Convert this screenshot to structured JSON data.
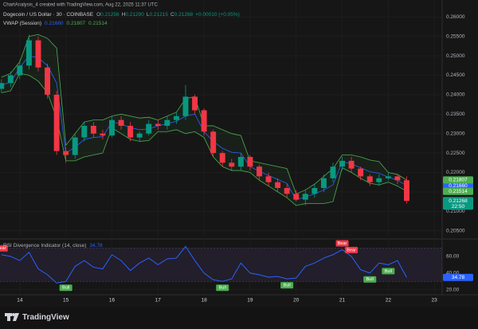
{
  "header": "ChartAnalysis_4 created with TradingView.com, Aug 22, 2025 11:37 UTC",
  "footer": "TradingView",
  "chart_data": [
    {
      "type": "candlestick",
      "title": "Dogecoin / US Dollar · 30 · COINBASE",
      "ohlc_legend": [
        {
          "label": "O",
          "value": "0.21256"
        },
        {
          "label": "H",
          "value": "0.21290"
        },
        {
          "label": "L",
          "value": "0.21215"
        },
        {
          "label": "C",
          "value": "0.21268"
        }
      ],
      "change": "+0.00010 (+0.05%)",
      "overlay_title": "VWAP (Session)",
      "x": [
        13.6,
        13.8,
        14.0,
        14.2,
        14.4,
        14.6,
        14.8,
        15.0,
        15.2,
        15.4,
        15.6,
        15.8,
        16.0,
        16.2,
        16.4,
        16.6,
        16.8,
        17.0,
        17.2,
        17.4,
        17.6,
        17.8,
        18.0,
        18.2,
        18.4,
        18.6,
        18.8,
        19.0,
        19.2,
        19.4,
        19.6,
        19.8,
        20.0,
        20.2,
        20.4,
        20.6,
        20.8,
        21.0,
        21.2,
        21.4,
        21.6,
        21.8,
        22.0,
        22.2,
        22.4
      ],
      "open": [
        0.2415,
        0.243,
        0.245,
        0.2475,
        0.254,
        0.247,
        0.24,
        0.2255,
        0.2245,
        0.229,
        0.232,
        0.23,
        0.2295,
        0.2335,
        0.232,
        0.229,
        0.23,
        0.2325,
        0.232,
        0.2335,
        0.2345,
        0.2395,
        0.236,
        0.2305,
        0.225,
        0.2225,
        0.2215,
        0.224,
        0.2215,
        0.219,
        0.2175,
        0.216,
        0.2145,
        0.213,
        0.2145,
        0.216,
        0.2185,
        0.2215,
        0.223,
        0.221,
        0.219,
        0.2175,
        0.2185,
        0.219,
        0.218
      ],
      "high": [
        0.244,
        0.246,
        0.249,
        0.2555,
        0.255,
        0.248,
        0.241,
        0.2265,
        0.23,
        0.233,
        0.233,
        0.231,
        0.2345,
        0.2345,
        0.233,
        0.2305,
        0.2335,
        0.2335,
        0.2345,
        0.2355,
        0.2425,
        0.24,
        0.2365,
        0.231,
        0.2255,
        0.2235,
        0.225,
        0.2245,
        0.222,
        0.22,
        0.2185,
        0.217,
        0.2155,
        0.2155,
        0.217,
        0.2195,
        0.2225,
        0.224,
        0.224,
        0.2215,
        0.2195,
        0.2195,
        0.22,
        0.2195,
        0.219
      ],
      "low": [
        0.2405,
        0.242,
        0.244,
        0.2465,
        0.246,
        0.239,
        0.2245,
        0.2225,
        0.2235,
        0.228,
        0.229,
        0.2285,
        0.229,
        0.231,
        0.228,
        0.228,
        0.2295,
        0.231,
        0.231,
        0.2325,
        0.2335,
        0.235,
        0.2295,
        0.224,
        0.2215,
        0.2205,
        0.2205,
        0.2205,
        0.218,
        0.2165,
        0.215,
        0.2135,
        0.2125,
        0.2115,
        0.2135,
        0.215,
        0.2175,
        0.2205,
        0.22,
        0.218,
        0.2165,
        0.2165,
        0.218,
        0.217,
        0.212
      ],
      "close": [
        0.243,
        0.245,
        0.2475,
        0.254,
        0.247,
        0.24,
        0.2255,
        0.2245,
        0.229,
        0.232,
        0.23,
        0.2295,
        0.2335,
        0.232,
        0.229,
        0.23,
        0.2325,
        0.232,
        0.2335,
        0.2345,
        0.2395,
        0.236,
        0.2305,
        0.225,
        0.2225,
        0.2215,
        0.224,
        0.2215,
        0.219,
        0.2175,
        0.216,
        0.2145,
        0.213,
        0.2145,
        0.216,
        0.2185,
        0.2215,
        0.223,
        0.221,
        0.219,
        0.2175,
        0.2185,
        0.219,
        0.218,
        0.21268
      ],
      "close_label": "0.21268",
      "countdown": "22:50",
      "up_color": "#089981",
      "down_color": "#f23645",
      "series": [
        {
          "color": "#2962ff",
          "last_label": "0.21660",
          "values": [
            0.2425,
            0.2432,
            0.247,
            0.25,
            0.2495,
            0.2475,
            0.243,
            0.225,
            0.2265,
            0.2285,
            0.229,
            0.2292,
            0.233,
            0.2325,
            0.2315,
            0.231,
            0.2312,
            0.232,
            0.2325,
            0.2332,
            0.2345,
            0.235,
            0.2305,
            0.228,
            0.2262,
            0.2252,
            0.225,
            0.2215,
            0.2203,
            0.2192,
            0.2182,
            0.2172,
            0.213,
            0.2137,
            0.2145,
            0.2155,
            0.2168,
            0.2228,
            0.2222,
            0.2212,
            0.2202,
            0.2198,
            0.2188,
            0.218,
            0.2166
          ]
        },
        {
          "color": "#4caf50",
          "last_label": "0.21807",
          "values": [
            0.2445,
            0.2455,
            0.2485,
            0.255,
            0.2555,
            0.2545,
            0.252,
            0.227,
            0.23,
            0.233,
            0.2335,
            0.2335,
            0.2345,
            0.235,
            0.2345,
            0.234,
            0.2342,
            0.2335,
            0.2345,
            0.2355,
            0.239,
            0.2395,
            0.232,
            0.232,
            0.231,
            0.23,
            0.2295,
            0.223,
            0.2225,
            0.222,
            0.2215,
            0.221,
            0.2145,
            0.2155,
            0.217,
            0.219,
            0.221,
            0.2245,
            0.2245,
            0.224,
            0.2232,
            0.2228,
            0.22,
            0.2195,
            0.21807
          ]
        },
        {
          "color": "#4caf50",
          "last_label": "0.21514",
          "values": [
            0.2405,
            0.241,
            0.2455,
            0.245,
            0.2435,
            0.2405,
            0.234,
            0.223,
            0.223,
            0.224,
            0.2245,
            0.225,
            0.2315,
            0.23,
            0.2285,
            0.228,
            0.2282,
            0.2305,
            0.2305,
            0.231,
            0.23,
            0.2305,
            0.229,
            0.224,
            0.2215,
            0.2205,
            0.2205,
            0.22,
            0.218,
            0.2165,
            0.215,
            0.2135,
            0.2115,
            0.212,
            0.212,
            0.212,
            0.2125,
            0.2212,
            0.22,
            0.2185,
            0.2172,
            0.2168,
            0.2175,
            0.2165,
            0.21514
          ]
        }
      ],
      "xlim": [
        13.57,
        23.17
      ],
      "ylim": [
        0.2035,
        0.2615
      ],
      "yticks": [
        {
          "value": 0.205,
          "label": "0.20500"
        },
        {
          "value": 0.21,
          "label": "0.21000"
        },
        {
          "value": 0.215,
          "label": "0.21500"
        },
        {
          "value": 0.22,
          "label": "0.22000"
        },
        {
          "value": 0.225,
          "label": "0.22500"
        },
        {
          "value": 0.23,
          "label": "0.23000"
        },
        {
          "value": 0.235,
          "label": "0.23500"
        },
        {
          "value": 0.24,
          "label": "0.24000"
        },
        {
          "value": 0.245,
          "label": "0.24500"
        },
        {
          "value": 0.25,
          "label": "0.25000"
        },
        {
          "value": 0.255,
          "label": "0.25500"
        },
        {
          "value": 0.26,
          "label": "0.26000"
        }
      ],
      "grid": true
    },
    {
      "type": "line",
      "title": "RSI Divergence Indicator (14, close)",
      "color": "#2962ff",
      "x": [
        13.6,
        13.8,
        14.0,
        14.2,
        14.4,
        14.6,
        14.8,
        15.0,
        15.2,
        15.4,
        15.6,
        15.8,
        16.0,
        16.2,
        16.4,
        16.6,
        16.8,
        17.0,
        17.2,
        17.4,
        17.6,
        17.8,
        18.0,
        18.2,
        18.4,
        18.6,
        18.8,
        19.0,
        19.2,
        19.4,
        19.6,
        19.8,
        20.0,
        20.2,
        20.4,
        20.6,
        20.8,
        21.0,
        21.2,
        21.4,
        21.6,
        21.8,
        22.0,
        22.2,
        22.4
      ],
      "values": [
        62,
        60,
        55,
        65,
        45,
        38,
        28,
        30,
        48,
        55,
        47,
        45,
        62,
        55,
        43,
        52,
        58,
        50,
        57,
        58,
        72,
        55,
        40,
        32,
        30,
        33,
        52,
        40,
        38,
        35,
        36,
        33,
        34,
        48,
        52,
        58,
        62,
        68,
        60,
        44,
        40,
        52,
        50,
        55,
        34.78
      ],
      "band": [
        30,
        70
      ],
      "band_color": "#7e57c2",
      "signals": [
        {
          "x": 13.6,
          "label": "Bear",
          "color": "#f23645"
        },
        {
          "x": 15.0,
          "label": "Bull",
          "color": "#4caf50"
        },
        {
          "x": 18.4,
          "label": "Bull",
          "color": "#4caf50"
        },
        {
          "x": 19.8,
          "label": "Bull",
          "color": "#4caf50"
        },
        {
          "x": 21.0,
          "label": "Bear",
          "color": "#f23645"
        },
        {
          "x": 21.2,
          "label": "Bear",
          "color": "#f23645"
        },
        {
          "x": 21.6,
          "label": "Bull",
          "color": "#4caf50"
        },
        {
          "x": 22.0,
          "label": "Bull",
          "color": "#4caf50"
        }
      ],
      "xlim": [
        13.57,
        23.17
      ],
      "ylim": [
        14,
        78
      ],
      "yticks": [
        {
          "value": 20,
          "label": "20.00"
        },
        {
          "value": 40,
          "label": "40.00"
        },
        {
          "value": 60,
          "label": "60.00"
        }
      ],
      "xticks": [
        14,
        15,
        16,
        17,
        18,
        19,
        20,
        21,
        22,
        23
      ],
      "grid": true
    }
  ]
}
